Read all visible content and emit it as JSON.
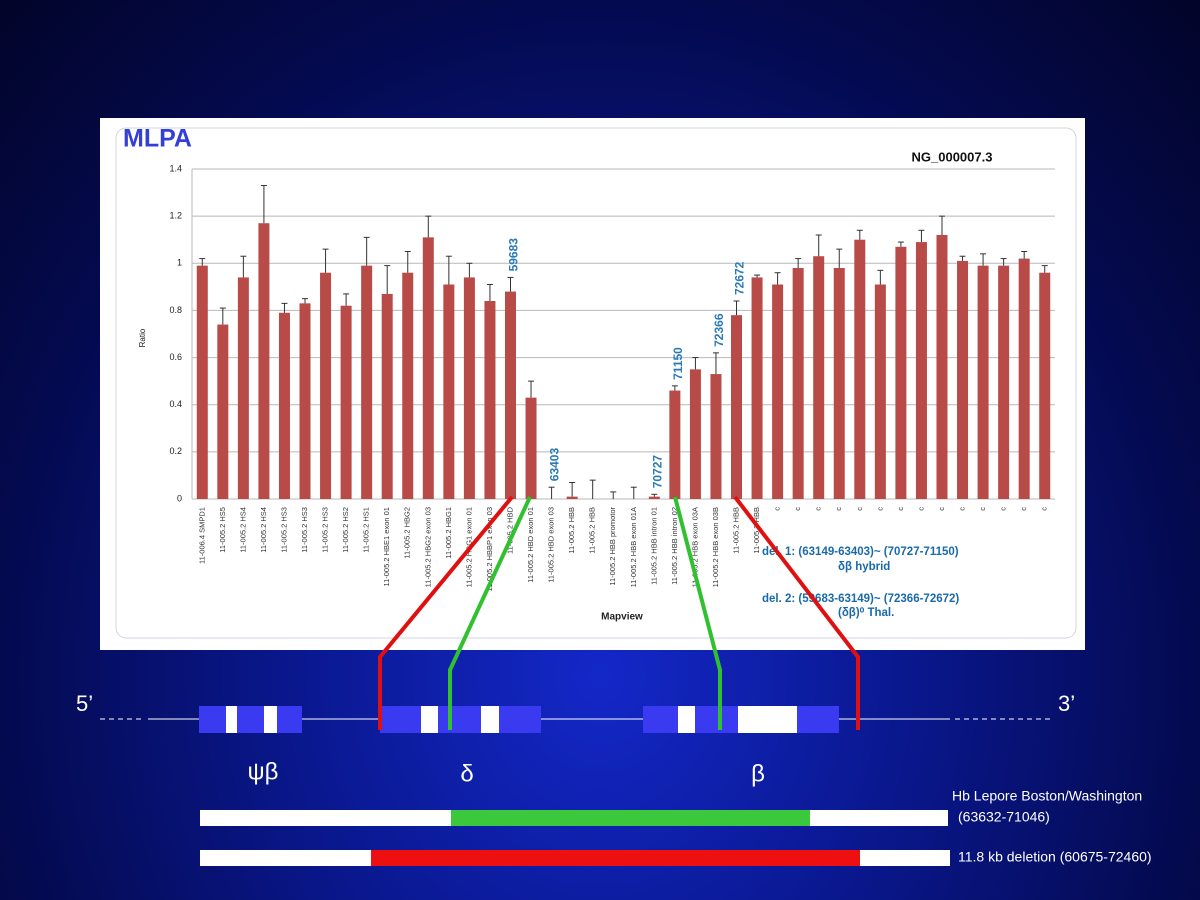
{
  "chart_data": {
    "type": "bar",
    "title": "MLPA",
    "subtitle": "NG_000007.3",
    "ylabel": "Ratio",
    "xlabel": "Mapview",
    "categories": [
      "11-006.4 SMPD1",
      "11-005.2 HS5",
      "11-005.2 HS4",
      "11-005.2 HS4",
      "11-005.2 HS3",
      "11-005.2 HS3",
      "11-005.2 HS3",
      "11-005.2 HS2",
      "11-005.2 HS1",
      "11-005.2 HBE1 exon 01",
      "11-005.2 HBG2",
      "11-005.2 HBG2 exon 03",
      "11-005.2 HBG1",
      "11-005.2 HBG1 exon 01",
      "11-005.2 HBBP1 exon 03",
      "11-005.2 HBD",
      "11-005.2 HBD exon 01",
      "11-005.2 HBD exon 03",
      "11-005.2 HBB",
      "11-005.2 HBB",
      "11-005.2 HBB promotor",
      "11-005.2 HBB exon 01A",
      "11-005.2 HBB intron 01",
      "11-005.2 HBB intron 02",
      "11-005.2 HBB exon 03A",
      "11-005.2 HBB exon 03B",
      "11-005.2 HBB",
      "11-005.2 HBB",
      "c",
      "c",
      "c",
      "c",
      "c",
      "c",
      "c",
      "c",
      "c",
      "c",
      "c",
      "c",
      "c",
      "c"
    ],
    "values": [
      0.99,
      0.74,
      0.94,
      1.17,
      0.79,
      0.83,
      0.96,
      0.82,
      0.99,
      0.87,
      0.96,
      1.11,
      0.91,
      0.94,
      0.84,
      0.88,
      0.43,
      0.0,
      0.01,
      0.0,
      0.0,
      0.0,
      0.01,
      0.46,
      0.55,
      0.53,
      0.78,
      0.94,
      0.91,
      0.98,
      1.03,
      0.98,
      1.1,
      0.91,
      1.07,
      1.09,
      1.12,
      1.01,
      0.99,
      0.99,
      1.02,
      0.96
    ],
    "errors": [
      0.03,
      0.07,
      0.09,
      0.16,
      0.04,
      0.02,
      0.1,
      0.05,
      0.12,
      0.12,
      0.09,
      0.09,
      0.12,
      0.06,
      0.07,
      0.06,
      0.07,
      0.05,
      0.06,
      0.08,
      0.03,
      0.05,
      0.01,
      0.02,
      0.05,
      0.09,
      0.06,
      0.01,
      0.05,
      0.04,
      0.09,
      0.08,
      0.04,
      0.06,
      0.02,
      0.05,
      0.08,
      0.02,
      0.05,
      0.03,
      0.03,
      0.03
    ],
    "color": "#b84a48",
    "ylim": [
      0,
      1.4
    ],
    "yticks": [
      0,
      0.2,
      0.4,
      0.6,
      0.8,
      1,
      1.2,
      1.4
    ],
    "grid": true,
    "annotations": [
      "59683",
      "63403",
      "70727",
      "71150",
      "72366",
      "72672"
    ],
    "notes": [
      "del. 1: (63149-63403)~ (70727-71150)",
      "δβ  hybrid",
      "del. 2: (59683-63149)~ (72366-72672)",
      "(δβ)⁰ Thal."
    ]
  },
  "diagram": {
    "five_prime": "5’",
    "three_prime": "3’",
    "genes": [
      "ψβ",
      "δ",
      "β"
    ],
    "lepore_name": "Hb Lepore Boston/Washington",
    "lepore_range": "(63632-71046)",
    "deletion": "11.8 kb deletion (60675-72460)"
  }
}
